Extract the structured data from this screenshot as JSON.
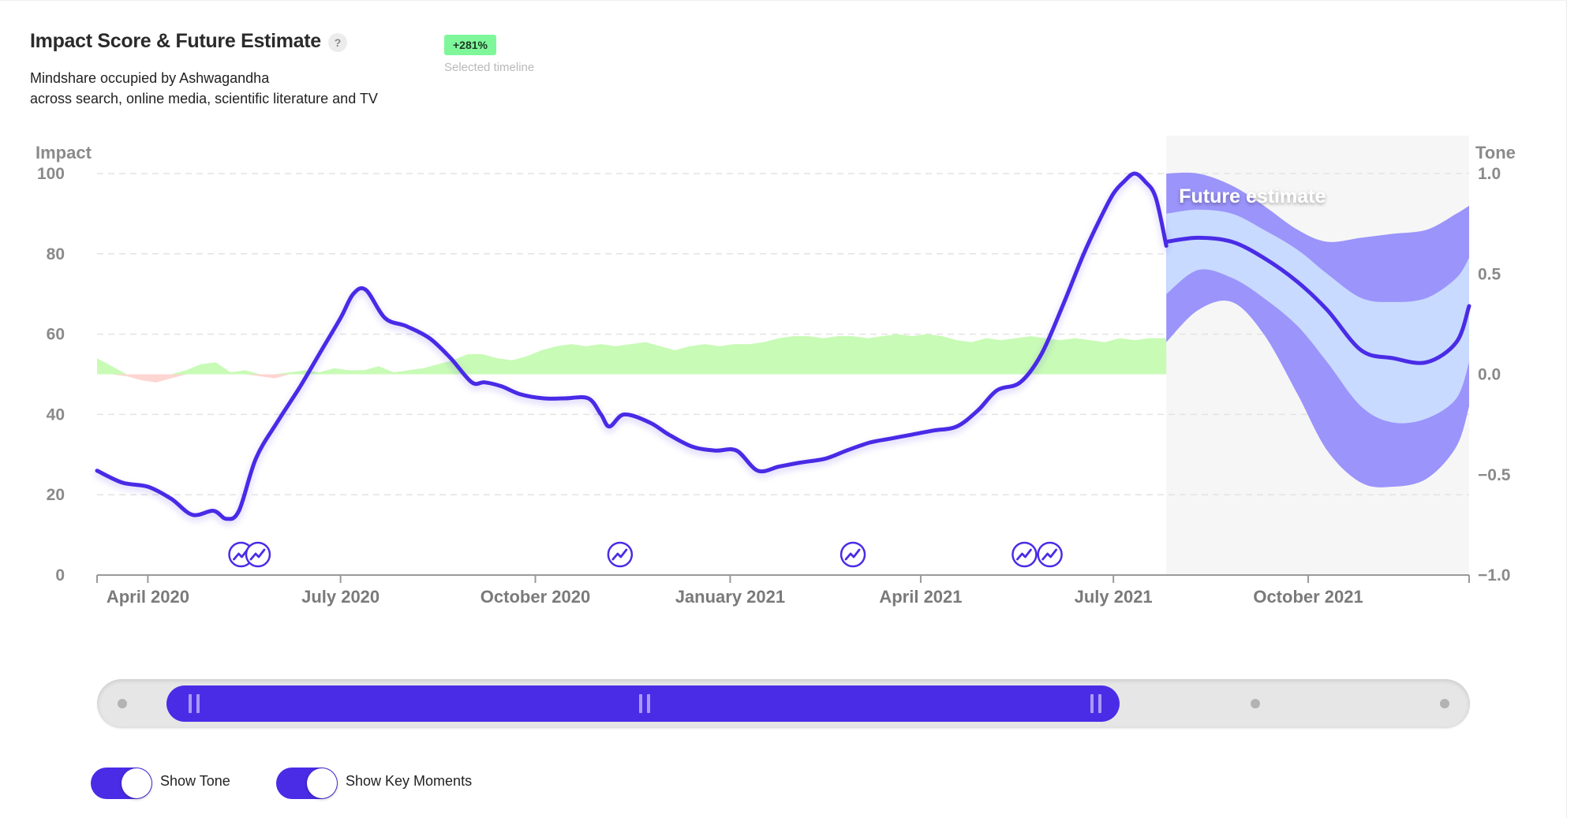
{
  "header": {
    "title": "Impact Score & Future Estimate",
    "help_icon": "?",
    "subtitle_line1": "Mindshare occupied by Ashwagandha",
    "subtitle_line2": "across search, online media, scientific literature and TV",
    "badge": "+281%",
    "badge_caption": "Selected timeline"
  },
  "colors": {
    "impact_line": "#4a2ce6",
    "tone_positive": "#c8fbb6",
    "tone_negative": "#fdd5d2",
    "future_band_outer": "#9b94fb",
    "future_band_inner": "#c8daff",
    "future_bg": "#f6f6f6",
    "key_moment": "#4a2ce6"
  },
  "chart_data": {
    "type": "line",
    "title": "Impact Score & Future Estimate",
    "ylabel_left": "Impact",
    "ylabel_right": "Tone",
    "yticks_left": [
      "100",
      "80",
      "60",
      "40",
      "20",
      "0"
    ],
    "yticks_right": [
      "1.0",
      "0.5",
      "0.0",
      "−0.5",
      "−1.0"
    ],
    "ylim_left": [
      0,
      100
    ],
    "ylim_right": [
      -1,
      1
    ],
    "x_range": [
      "2020-03-08",
      "2021-12-16"
    ],
    "x_tick_labels": [
      "April 2020",
      "July 2020",
      "October 2020",
      "January 2021",
      "April 2021",
      "July 2021",
      "October 2021"
    ],
    "x_tick_dates": [
      "2020-04-01",
      "2020-07-01",
      "2020-10-01",
      "2021-01-01",
      "2021-04-01",
      "2021-07-01",
      "2021-10-01"
    ],
    "future_start": "2021-07-26",
    "future_label": "Future estimate",
    "impact": {
      "name": "Impact",
      "x": [
        "2020-03-08",
        "2020-03-20",
        "2020-04-01",
        "2020-04-12",
        "2020-04-22",
        "2020-05-02",
        "2020-05-08",
        "2020-05-14",
        "2020-05-22",
        "2020-06-01",
        "2020-06-12",
        "2020-06-22",
        "2020-07-01",
        "2020-07-07",
        "2020-07-13",
        "2020-07-22",
        "2020-08-01",
        "2020-08-12",
        "2020-08-22",
        "2020-09-01",
        "2020-09-07",
        "2020-09-15",
        "2020-09-24",
        "2020-10-05",
        "2020-10-15",
        "2020-10-26",
        "2020-11-01",
        "2020-11-05",
        "2020-11-12",
        "2020-11-24",
        "2020-12-03",
        "2020-12-14",
        "2020-12-25",
        "2021-01-04",
        "2021-01-14",
        "2021-01-24",
        "2021-02-03",
        "2021-02-15",
        "2021-02-25",
        "2021-03-08",
        "2021-03-18",
        "2021-03-28",
        "2021-04-07",
        "2021-04-18",
        "2021-04-28",
        "2021-05-07",
        "2021-05-18",
        "2021-05-28",
        "2021-06-07",
        "2021-06-17",
        "2021-06-25",
        "2021-07-01",
        "2021-07-06",
        "2021-07-11",
        "2021-07-16",
        "2021-07-21",
        "2021-07-26"
      ],
      "values": [
        26,
        23,
        22,
        19,
        15,
        16,
        14,
        16,
        29,
        38,
        47,
        56,
        64,
        70,
        71,
        64,
        62,
        59,
        54,
        48,
        48,
        47,
        45,
        44,
        44,
        44,
        40,
        37,
        40,
        38,
        35,
        32,
        31,
        31,
        26,
        27,
        28,
        29,
        31,
        33,
        34,
        35,
        36,
        37,
        41,
        46,
        48,
        55,
        67,
        80,
        89,
        95,
        98,
        100,
        98,
        94,
        82
      ]
    },
    "forecast": {
      "x": [
        "2021-07-26",
        "2021-08-10",
        "2021-08-26",
        "2021-09-10",
        "2021-09-26",
        "2021-10-10",
        "2021-10-26",
        "2021-11-10",
        "2021-11-26",
        "2021-12-10",
        "2021-12-16"
      ],
      "values": [
        83,
        84,
        83,
        79,
        73,
        66,
        56,
        54,
        53,
        58,
        67
      ],
      "inner_upper": [
        90,
        91,
        90,
        86,
        81,
        75,
        69,
        68,
        69,
        74,
        79
      ],
      "inner_lower": [
        70,
        76,
        74,
        69,
        62,
        53,
        42,
        38,
        39,
        44,
        53
      ],
      "outer_upper": [
        100,
        100,
        97,
        92,
        86,
        83,
        84,
        85,
        86,
        90,
        92
      ],
      "outer_lower": [
        58,
        66,
        68,
        60,
        45,
        31,
        23,
        22,
        24,
        32,
        42
      ]
    },
    "tone": {
      "name": "Tone",
      "x": [
        "2020-03-08",
        "2020-03-15",
        "2020-03-22",
        "2020-03-29",
        "2020-04-05",
        "2020-04-12",
        "2020-04-19",
        "2020-04-26",
        "2020-05-03",
        "2020-05-10",
        "2020-05-17",
        "2020-05-24",
        "2020-05-31",
        "2020-06-07",
        "2020-06-14",
        "2020-06-21",
        "2020-06-28",
        "2020-07-05",
        "2020-07-12",
        "2020-07-19",
        "2020-07-26",
        "2020-08-02",
        "2020-08-09",
        "2020-08-16",
        "2020-08-23",
        "2020-08-30",
        "2020-09-06",
        "2020-09-13",
        "2020-09-20",
        "2020-09-27",
        "2020-10-04",
        "2020-10-11",
        "2020-10-18",
        "2020-10-25",
        "2020-11-01",
        "2020-11-08",
        "2020-11-15",
        "2020-11-22",
        "2020-11-29",
        "2020-12-06",
        "2020-12-13",
        "2020-12-20",
        "2020-12-27",
        "2021-01-03",
        "2021-01-10",
        "2021-01-17",
        "2021-01-24",
        "2021-01-31",
        "2021-02-07",
        "2021-02-14",
        "2021-02-21",
        "2021-02-28",
        "2021-03-07",
        "2021-03-14",
        "2021-03-21",
        "2021-03-28",
        "2021-04-04",
        "2021-04-11",
        "2021-04-18",
        "2021-04-25",
        "2021-05-02",
        "2021-05-09",
        "2021-05-16",
        "2021-05-23",
        "2021-05-30",
        "2021-06-06",
        "2021-06-13",
        "2021-06-20",
        "2021-06-27",
        "2021-07-04",
        "2021-07-11",
        "2021-07-18",
        "2021-07-26"
      ],
      "values": [
        0.08,
        0.04,
        -0.01,
        -0.03,
        -0.04,
        -0.02,
        0.02,
        0.05,
        0.06,
        0.01,
        0.02,
        -0.01,
        -0.02,
        0.01,
        0.02,
        0.01,
        0.03,
        0.02,
        0.02,
        0.04,
        0.01,
        0.02,
        0.03,
        0.05,
        0.07,
        0.1,
        0.1,
        0.08,
        0.07,
        0.09,
        0.12,
        0.14,
        0.15,
        0.14,
        0.15,
        0.14,
        0.15,
        0.16,
        0.14,
        0.12,
        0.14,
        0.15,
        0.14,
        0.15,
        0.15,
        0.16,
        0.18,
        0.19,
        0.19,
        0.18,
        0.19,
        0.19,
        0.18,
        0.19,
        0.2,
        0.19,
        0.2,
        0.19,
        0.17,
        0.16,
        0.18,
        0.17,
        0.18,
        0.19,
        0.18,
        0.17,
        0.18,
        0.17,
        0.16,
        0.18,
        0.17,
        0.18,
        0.18
      ]
    },
    "key_moments": [
      "2020-05-15",
      "2020-05-23",
      "2020-11-10",
      "2021-02-28",
      "2021-05-20",
      "2021-06-01"
    ]
  },
  "range_slider": {
    "handles": [
      "left-handle",
      "center-handle",
      "right-handle"
    ]
  },
  "toggles": [
    {
      "label": "Show Tone",
      "on": true
    },
    {
      "label": "Show Key Moments",
      "on": true
    }
  ]
}
